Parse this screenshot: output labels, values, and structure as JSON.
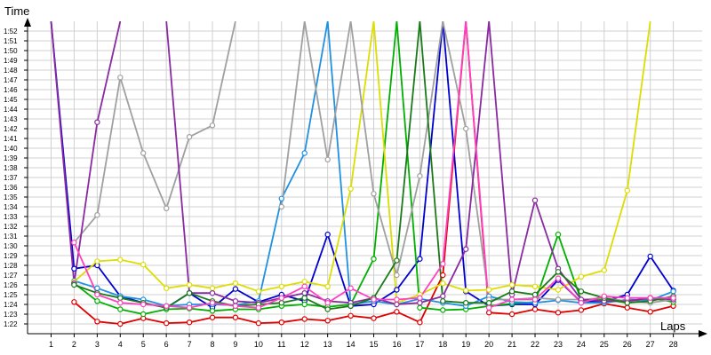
{
  "chart_data": {
    "type": "line",
    "xlabel": "Laps",
    "ylabel": "Time",
    "x": [
      1,
      2,
      3,
      4,
      5,
      6,
      7,
      8,
      9,
      10,
      11,
      12,
      13,
      14,
      15,
      16,
      17,
      18,
      19,
      20,
      21,
      22,
      23,
      24,
      25,
      26,
      27,
      28
    ],
    "ylim": [
      "1:21:00",
      "1:53:00"
    ],
    "grid": true,
    "y_ticks": [
      "1:22",
      "1:23",
      "1:24",
      "1:25",
      "1:26",
      "1:27",
      "1:28",
      "1:29",
      "1:30",
      "1:31",
      "1:32",
      "1:33",
      "1:34",
      "1:35",
      "1:36",
      "1:37",
      "1:38",
      "1:39",
      "1:40",
      "1:41",
      "1:42",
      "1:43",
      "1:44",
      "1:45",
      "1:46",
      "1:47",
      "1:48",
      "1:49",
      "1:50",
      "1:51",
      "1:52"
    ],
    "series": [
      {
        "color": "#e00000",
        "values": [
          null,
          "1:24:15",
          "1:22:15",
          "1:22:00",
          "1:22:35",
          "1:22:05",
          "1:22:10",
          "1:22:40",
          "1:22:40",
          "1:22:05",
          "1:22:10",
          "1:22:30",
          "1:22:20",
          "1:22:50",
          "1:22:35",
          "1:23:15",
          "1:22:10",
          "1:27:00",
          "1:53:00",
          "1:23:10",
          "1:23:00",
          "1:23:30",
          "1:23:10",
          "1:23:25",
          "1:24:05",
          "1:23:40",
          "1:23:15",
          "1:23:50"
        ]
      },
      {
        "color": "#0000d0",
        "values": [
          "1:53:00",
          "1:27:40",
          "1:28:00",
          "1:24:50",
          "1:24:10",
          "1:23:40",
          "1:25:10",
          "1:23:40",
          "1:25:35",
          "1:24:15",
          "1:25:00",
          "1:24:20",
          "1:31:10",
          "1:23:50",
          "1:24:00",
          "1:25:30",
          "1:28:40",
          "1:53:00",
          "1:25:20",
          "1:23:50",
          "1:24:00",
          "1:24:00",
          "1:26:30",
          "1:24:15",
          "1:24:20",
          "1:25:00",
          "1:28:55",
          "1:25:25"
        ]
      },
      {
        "color": "#00b000",
        "values": [
          null,
          "1:26:10",
          "1:24:20",
          "1:23:30",
          "1:23:00",
          "1:23:30",
          "1:23:35",
          "1:23:20",
          "1:23:30",
          "1:23:30",
          "1:23:50",
          "1:24:00",
          "1:23:45",
          "1:24:00",
          "1:28:40",
          "1:53:00",
          "1:23:40",
          "1:23:25",
          "1:23:30",
          "1:23:50",
          "1:24:05",
          "1:24:15",
          "1:31:10",
          "1:24:25",
          "1:24:30",
          "1:24:10",
          "1:24:40",
          "1:24:15"
        ]
      },
      {
        "color": "#2090e0",
        "values": [
          null,
          "1:26:25",
          "1:25:40",
          "1:24:50",
          "1:24:30",
          "1:23:50",
          "1:24:00",
          "1:24:00",
          "1:23:55",
          "1:24:20",
          "1:34:50",
          "1:39:30",
          "1:53:00",
          "1:24:00",
          "1:24:20",
          "1:24:00",
          "1:24:35",
          "1:24:10",
          "1:23:50",
          "1:24:50",
          "1:24:15",
          "1:24:10",
          "1:24:25",
          "1:24:10",
          "1:24:10",
          "1:24:30",
          "1:24:25",
          "1:25:20"
        ]
      },
      {
        "color": "#dddd00",
        "values": [
          null,
          "1:26:20",
          "1:28:25",
          "1:28:35",
          "1:28:05",
          "1:25:40",
          "1:26:00",
          "1:25:40",
          "1:26:10",
          "1:25:20",
          "1:25:50",
          "1:26:20",
          "1:25:50",
          "1:35:50",
          "1:53:00",
          "1:24:10",
          "1:25:00",
          "1:26:10",
          "1:25:25",
          "1:25:30",
          "1:26:00",
          "1:25:50",
          "1:25:30",
          "1:26:50",
          "1:27:30",
          "1:35:40",
          "1:53:00",
          null
        ]
      },
      {
        "color": "#a0a0a0",
        "values": [
          null,
          "1:30:20",
          "1:33:10",
          "1:47:15",
          "1:39:30",
          "1:33:50",
          "1:41:10",
          "1:42:20",
          "1:53:00",
          null,
          "1:34:00",
          "1:53:00",
          "1:38:50",
          "1:53:00",
          "1:35:20",
          "1:27:00",
          "1:37:10",
          "1:53:00",
          "1:42:00",
          "1:24:30",
          "1:24:30",
          "1:24:40",
          "1:24:30",
          "1:24:30",
          "1:24:40",
          "1:24:20",
          "1:24:10",
          "1:24:30"
        ]
      },
      {
        "color": "#8a2aa0",
        "values": [
          "1:53:00",
          "1:26:10",
          "1:42:40",
          "1:53:00",
          null,
          "1:53:00",
          "1:25:10",
          "1:25:10",
          "1:24:20",
          "1:24:10",
          "1:24:40",
          "1:25:10",
          "1:24:20",
          "1:24:10",
          "1:24:40",
          "1:24:00",
          "1:24:10",
          "1:24:50",
          "1:29:40",
          "1:53:00",
          "1:25:00",
          "1:34:40",
          "1:27:40",
          "1:24:30",
          "1:24:20",
          "1:24:20",
          "1:24:40",
          "1:24:30"
        ]
      },
      {
        "color": "#1a7a1a",
        "values": [
          null,
          "1:26:00",
          "1:25:10",
          "1:24:40",
          "1:24:10",
          "1:23:40",
          "1:25:10",
          "1:24:20",
          "1:23:50",
          "1:24:00",
          "1:24:10",
          "1:24:40",
          "1:23:30",
          "1:23:50",
          "1:24:40",
          "1:28:30",
          "1:53:00",
          "1:24:20",
          "1:24:10",
          "1:24:10",
          "1:25:20",
          "1:25:00",
          "1:27:20",
          "1:25:20",
          "1:24:40",
          "1:24:10",
          "1:24:20",
          "1:24:50"
        ]
      },
      {
        "color": "#ff40c0",
        "values": [
          null,
          "1:30:20",
          "1:25:00",
          "1:24:10",
          "1:24:00",
          "1:23:50",
          "1:23:40",
          "1:24:10",
          "1:23:50",
          "1:23:40",
          "1:24:40",
          "1:25:50",
          "1:24:10",
          "1:25:40",
          "1:24:30",
          "1:24:30",
          "1:24:40",
          "1:28:10",
          "1:53:00",
          "1:23:40",
          "1:24:30",
          "1:24:30",
          "1:26:40",
          "1:24:10",
          "1:24:50",
          "1:24:40",
          "1:24:40",
          "1:24:40"
        ]
      }
    ]
  }
}
